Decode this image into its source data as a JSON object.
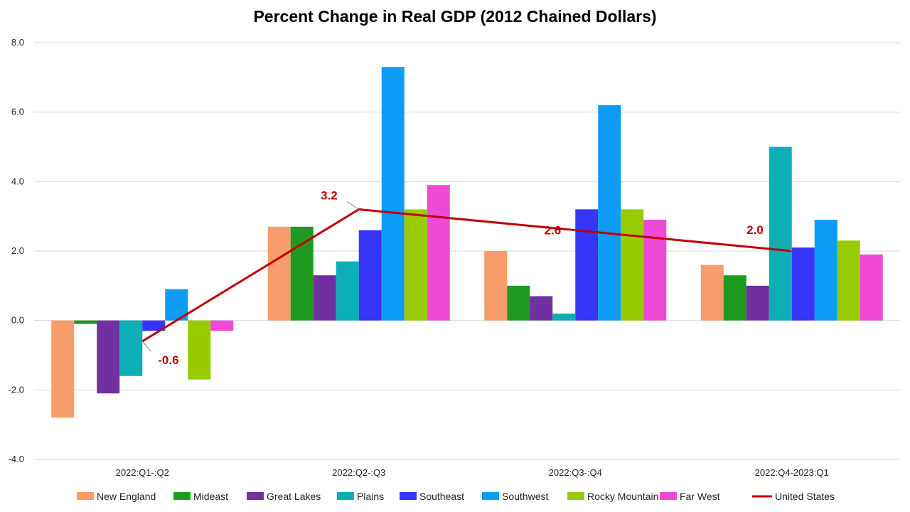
{
  "chart_data": {
    "type": "bar",
    "title": "Percent Change in Real GDP (2012 Chained Dollars)",
    "categories": [
      "2022:Q1-:Q2",
      "2022:Q2-:Q3",
      "2022:Q3-:Q4",
      "2022:Q4-2023:Q1"
    ],
    "y_ticks": [
      "8.0",
      "6.0",
      "4.0",
      "2.0",
      "0.0",
      "-2.0",
      "-4.0"
    ],
    "ylim": [
      -4,
      8
    ],
    "grid": true,
    "legend_position": "bottom",
    "series": [
      {
        "name": "New England",
        "color": "#F79D6C",
        "values": [
          -2.8,
          2.7,
          2.0,
          1.6
        ]
      },
      {
        "name": "Mideast",
        "color": "#1E9A1E",
        "values": [
          -0.1,
          2.7,
          1.0,
          1.3
        ]
      },
      {
        "name": "Great Lakes",
        "color": "#7030A0",
        "values": [
          -2.1,
          1.3,
          0.7,
          1.0
        ]
      },
      {
        "name": "Plains",
        "color": "#0CAFB5",
        "values": [
          -1.6,
          1.7,
          0.2,
          5.0
        ]
      },
      {
        "name": "Southeast",
        "color": "#3535F5",
        "values": [
          -0.3,
          2.6,
          3.2,
          2.1
        ]
      },
      {
        "name": "Southwest",
        "color": "#0D9BF5",
        "values": [
          0.9,
          7.3,
          6.2,
          2.9
        ]
      },
      {
        "name": "Rocky Mountain",
        "color": "#99CC00",
        "values": [
          -1.7,
          3.2,
          3.2,
          2.3
        ]
      },
      {
        "name": "Far West",
        "color": "#EE4AD6",
        "values": [
          -0.3,
          3.9,
          2.9,
          1.9
        ]
      }
    ],
    "line_series": {
      "name": "United States",
      "color": "#C00000",
      "values": [
        -0.6,
        3.2,
        2.6,
        2.0
      ],
      "data_labels": [
        "-0.6",
        "3.2",
        "2.6",
        "2.0"
      ]
    }
  }
}
